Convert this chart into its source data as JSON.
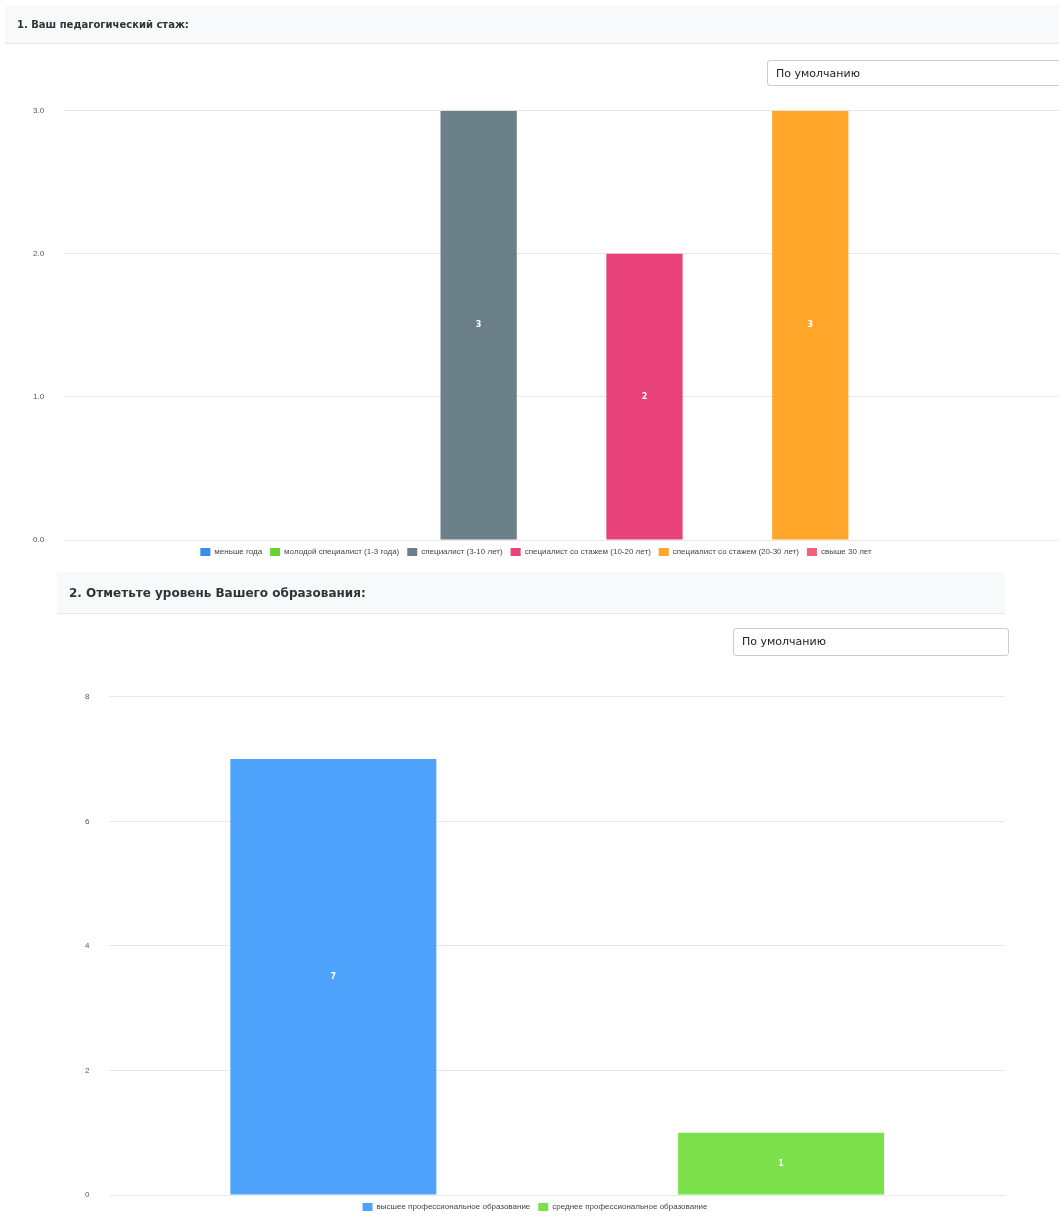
{
  "chart_data": [
    {
      "type": "bar",
      "title": "1. Ваш педагогический стаж:",
      "annotations": [
        "По умолчанию"
      ],
      "categories": [
        null,
        null,
        null,
        null,
        null,
        null
      ],
      "series": [
        {
          "name": "меньше года",
          "color": "#3a8ee6",
          "values": [
            0,
            null,
            null,
            null,
            null,
            null
          ],
          "value_labels": [
            null,
            null,
            null,
            null,
            null,
            null
          ]
        },
        {
          "name": "молодой специалист (1-3 года)",
          "color": "#6ad12f",
          "values": [
            null,
            0,
            null,
            null,
            null,
            null
          ],
          "value_labels": [
            null,
            null,
            null,
            null,
            null,
            null
          ]
        },
        {
          "name": "специалист (3-10 лет)",
          "color": "#6c8089",
          "values": [
            null,
            null,
            3,
            null,
            null,
            null
          ],
          "value_labels": [
            null,
            null,
            "3",
            null,
            null,
            null
          ]
        },
        {
          "name": "специалист со стажем (10-20 лет)",
          "color": "#e9417a",
          "values": [
            null,
            null,
            null,
            2,
            null,
            null
          ],
          "value_labels": [
            null,
            null,
            null,
            "2",
            null,
            null
          ]
        },
        {
          "name": "специалист со стажем (20-30 лет)",
          "color": "#ffa62b",
          "values": [
            null,
            null,
            null,
            null,
            3,
            null
          ],
          "value_labels": [
            null,
            null,
            null,
            null,
            "3",
            null
          ]
        },
        {
          "name": "свыше 30 лет",
          "color": "#f0607f",
          "values": [
            null,
            null,
            null,
            null,
            null,
            0
          ],
          "value_labels": [
            null,
            null,
            null,
            null,
            null,
            null
          ]
        }
      ],
      "ylim": [
        0,
        3
      ],
      "yticks": [
        {
          "value": 0,
          "label": "0.0"
        },
        {
          "value": 1,
          "label": "1.0"
        },
        {
          "value": 2,
          "label": "2.0"
        },
        {
          "value": 3,
          "label": "3.0"
        }
      ],
      "grid": "y",
      "legend": "bottom",
      "tick_labels": "y"
    },
    {
      "type": "bar",
      "title": "2. Отметьте уровень Вашего образования:",
      "annotations": [
        "По умолчанию"
      ],
      "categories": [
        null,
        null
      ],
      "series": [
        {
          "name": "высшее профессиональное образование",
          "color": "#4da3fc",
          "values": [
            7,
            null
          ]
        },
        {
          "name": "среднее профессиональное образование",
          "color": "#7be04a",
          "values": [
            null,
            1
          ]
        }
      ],
      "data_labels": true,
      "ylim": [
        0,
        8
      ],
      "yticks": [
        0,
        2,
        4,
        6,
        8
      ],
      "grid": "y",
      "legend": "bottom",
      "tick_labels": "y"
    }
  ]
}
